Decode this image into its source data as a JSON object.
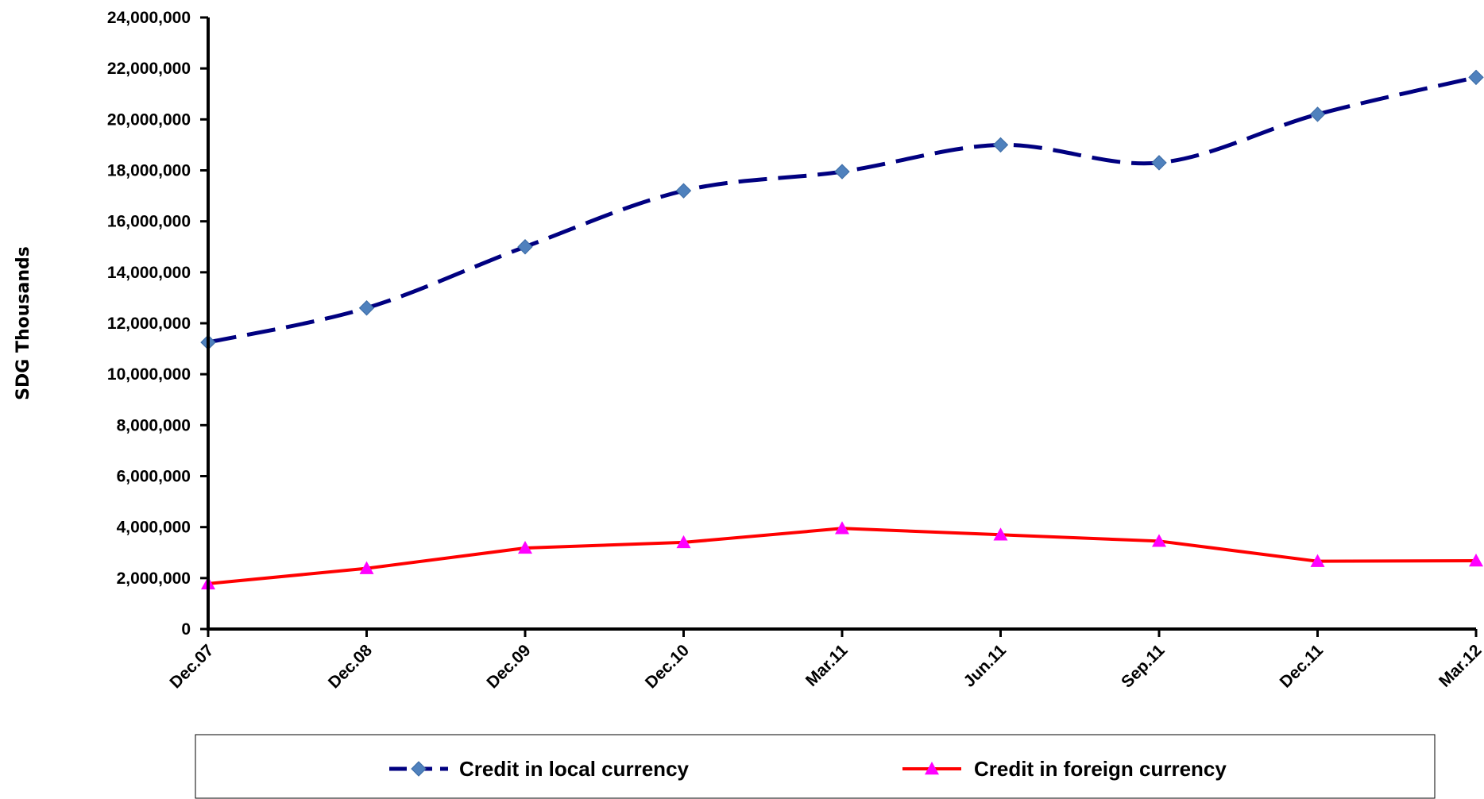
{
  "chart_data": {
    "type": "line",
    "categories": [
      "Dec.07",
      "Dec.08",
      "Dec.09",
      "Dec.10",
      "Mar.11",
      "Jun.11",
      "Sep.11",
      "Dec.11",
      "Mar.12"
    ],
    "series": [
      {
        "name": "Credit in local currency",
        "values": [
          11250000,
          12600000,
          15000000,
          17200000,
          17950000,
          19000000,
          18300000,
          20200000,
          21650000
        ],
        "color": "#000080",
        "marker_color": "#4f81bd",
        "marker": "diamond",
        "line_style": "dashed",
        "smooth": true
      },
      {
        "name": "Credit in foreign currency",
        "values": [
          1780000,
          2380000,
          3180000,
          3400000,
          3950000,
          3700000,
          3450000,
          2660000,
          2680000
        ],
        "color": "#ff0000",
        "marker_color": "#ff00ff",
        "marker": "triangle",
        "line_style": "solid",
        "smooth": false
      }
    ],
    "title": "",
    "xlabel": "",
    "ylabel": "SDG Thousands",
    "ylim": [
      0,
      24000000
    ],
    "yticks": [
      "0",
      "2,000,000",
      "4,000,000",
      "6,000,000",
      "8,000,000",
      "10,000,000",
      "12,000,000",
      "14,000,000",
      "16,000,000",
      "18,000,000",
      "20,000,000",
      "22,000,000",
      "24,000,000"
    ],
    "grid": false,
    "legend_position": "bottom"
  }
}
